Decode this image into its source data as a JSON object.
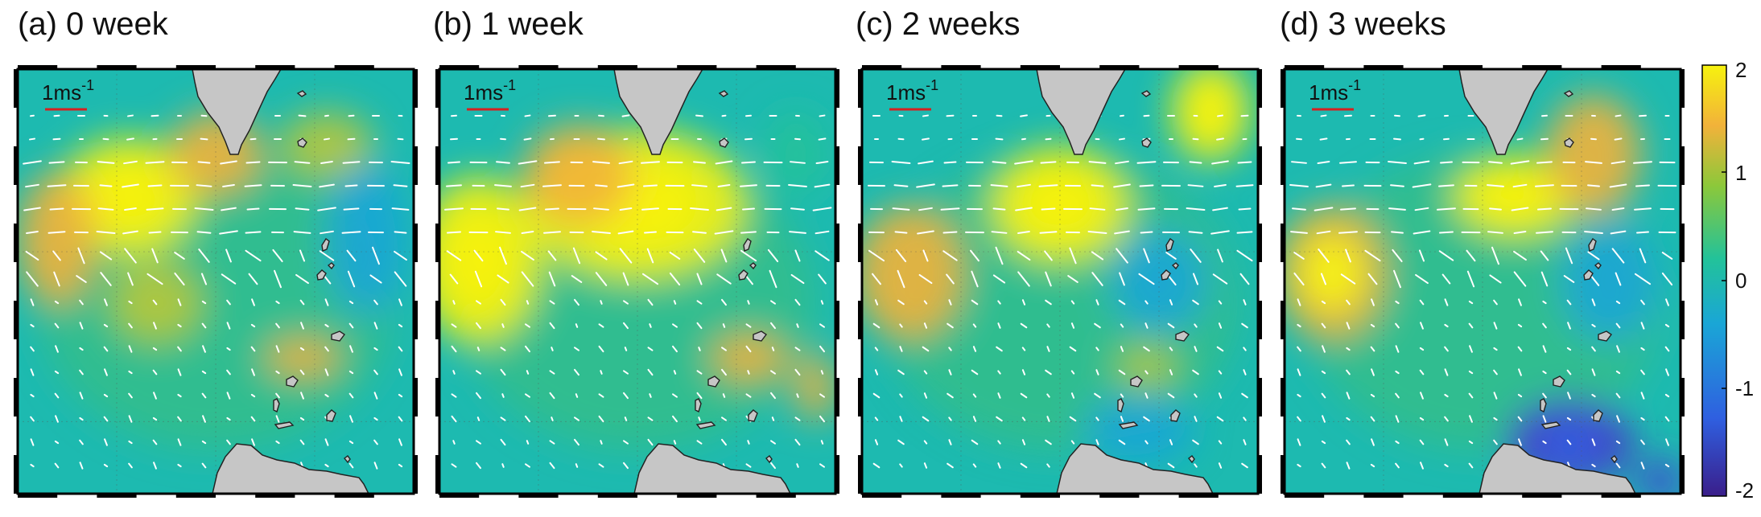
{
  "panels": [
    {
      "label": "(a) 0 week",
      "scale_label": "1ms",
      "scale_exp": "-1",
      "weeks": 0
    },
    {
      "label": "(b) 1 week",
      "scale_label": "1ms",
      "scale_exp": "-1",
      "weeks": 1
    },
    {
      "label": "(c) 2 weeks",
      "scale_label": "1ms",
      "scale_exp": "-1",
      "weeks": 2
    },
    {
      "label": "(d) 3 weeks",
      "scale_label": "1ms",
      "scale_exp": "-1",
      "weeks": 3
    }
  ],
  "colorbar": {
    "ticks": [
      "2",
      "1",
      "0",
      "-1",
      "-2"
    ],
    "colors": [
      "#3a1e8a",
      "#2f5fe0",
      "#1aa6d6",
      "#22c29a",
      "#8cc83a",
      "#f2b23a",
      "#f6f20e"
    ]
  },
  "colors": {
    "land": "#c6c6c6",
    "coast": "#222222",
    "arrow": "#ffffff",
    "scale_bar": "#d62020",
    "frame": "#000000"
  }
}
